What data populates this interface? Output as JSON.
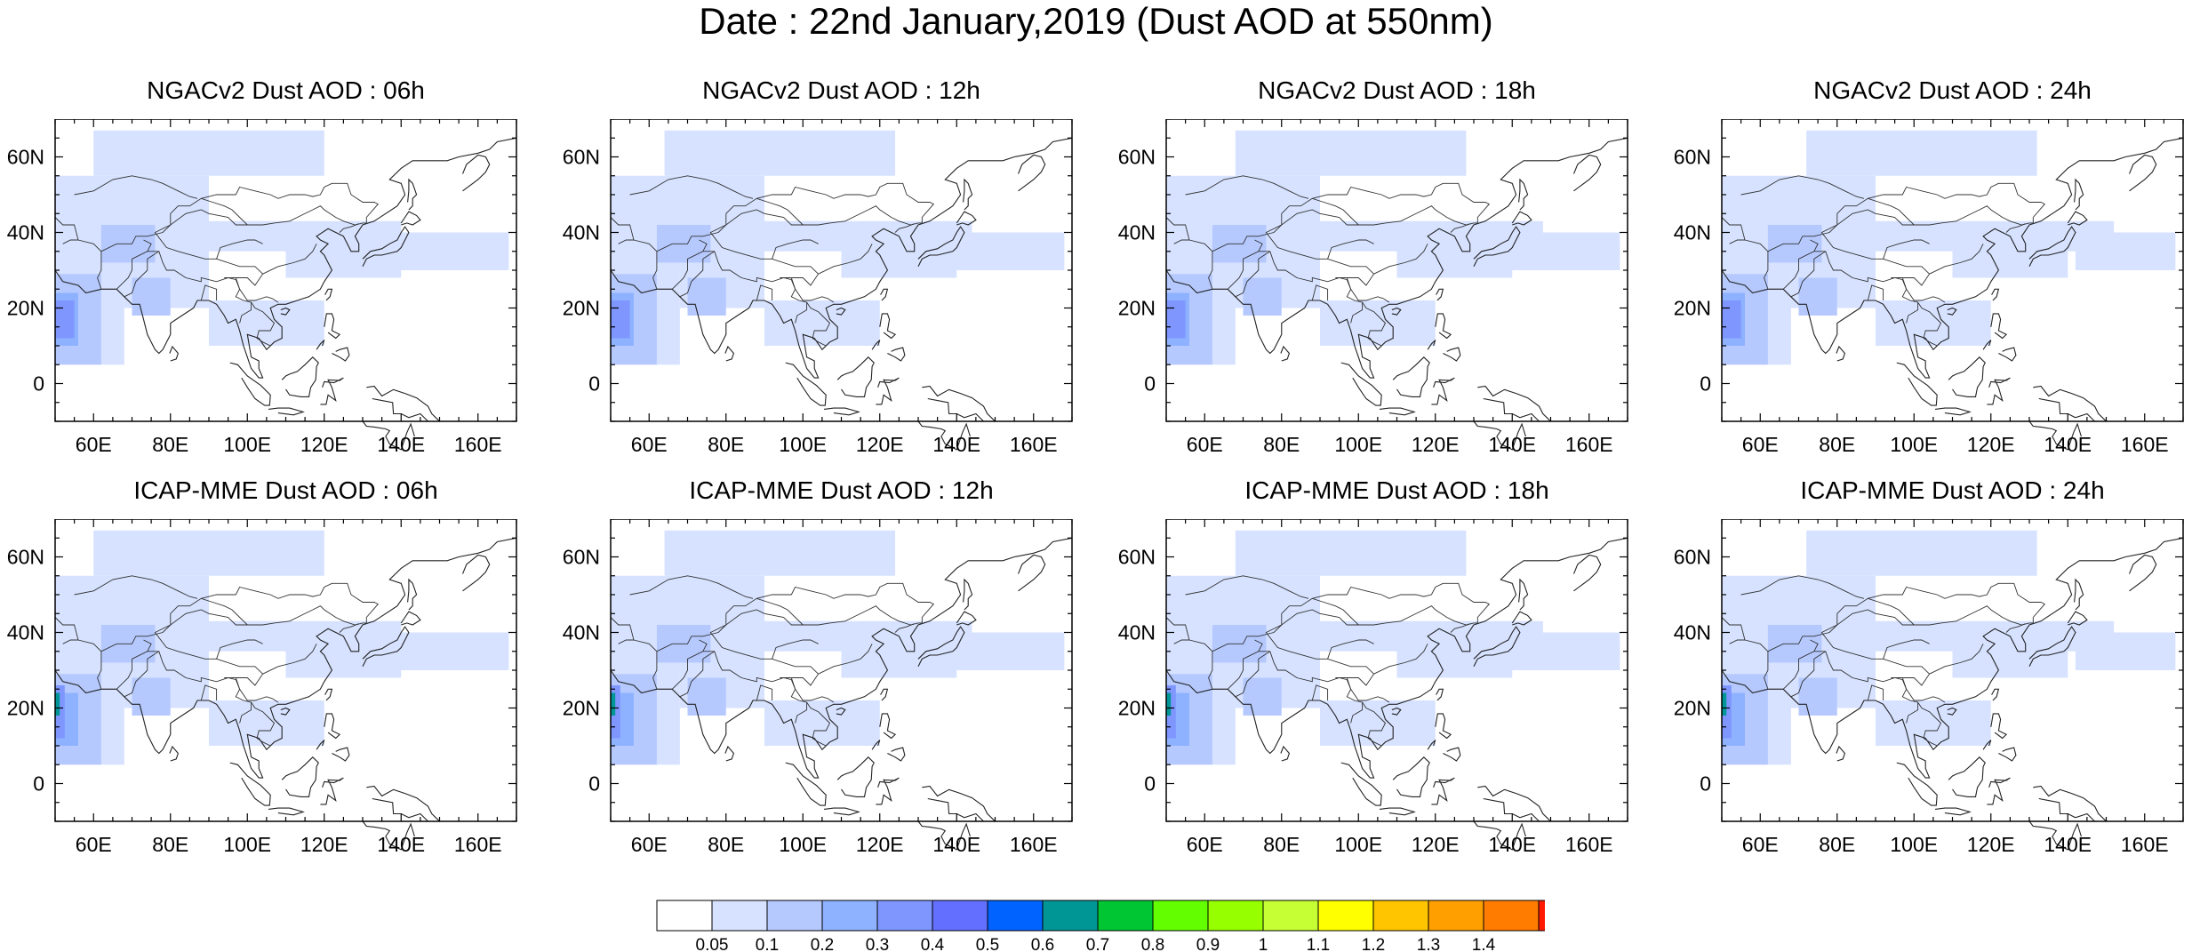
{
  "title": "Date : 22nd January,2019 (Dust AOD at 550nm)",
  "panels": [
    {
      "title": "NGACv2 Dust AOD : 06h"
    },
    {
      "title": "NGACv2 Dust AOD : 12h"
    },
    {
      "title": "NGACv2 Dust AOD : 18h"
    },
    {
      "title": "NGACv2 Dust AOD : 24h"
    },
    {
      "title": "ICAP-MME Dust AOD : 06h"
    },
    {
      "title": "ICAP-MME Dust AOD : 12h"
    },
    {
      "title": "ICAP-MME Dust AOD : 18h"
    },
    {
      "title": "ICAP-MME Dust AOD : 24h"
    }
  ],
  "map": {
    "lon_range": [
      50,
      170
    ],
    "lat_range": [
      -10,
      70
    ],
    "lon_ticks": [
      "60E",
      "80E",
      "100E",
      "120E",
      "140E",
      "160E"
    ],
    "lon_tick_values": [
      60,
      80,
      100,
      120,
      140,
      160
    ],
    "lat_ticks": [
      "0",
      "20N",
      "40N",
      "60N"
    ],
    "lat_tick_values": [
      0,
      20,
      40,
      60
    ]
  },
  "colorbar": {
    "labels": [
      "0.05",
      "0.1",
      "0.2",
      "0.3",
      "0.4",
      "0.5",
      "0.6",
      "0.7",
      "0.8",
      "0.9",
      "1",
      "1.1",
      "1.2",
      "1.3",
      "1.4"
    ],
    "colors": [
      "#ffffff",
      "#d6e2ff",
      "#b5c9ff",
      "#8eb2ff",
      "#7f96ff",
      "#6370ff",
      "#0063ff",
      "#009696",
      "#00c633",
      "#63ff00",
      "#96ff00",
      "#c6ff33",
      "#ffff00",
      "#ffc600",
      "#ffa000",
      "#ff7c00",
      "#ff1900"
    ]
  }
}
